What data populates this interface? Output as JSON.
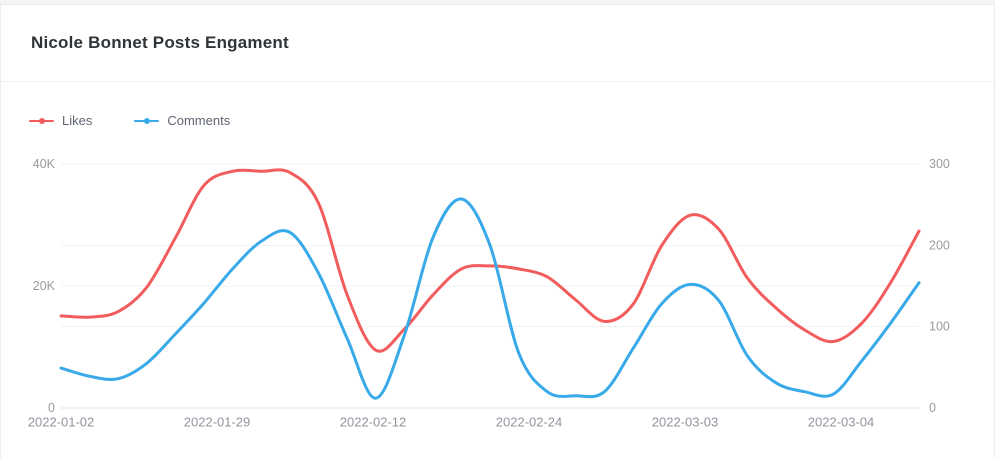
{
  "header": {
    "title": "Nicole Bonnet Posts Engament"
  },
  "chart_data": {
    "type": "line",
    "title": "Nicole Bonnet Posts Engament",
    "smooth": true,
    "grid": true,
    "legend_position": "top-left",
    "x_tick_labels": [
      "2022-01-02",
      "2022-01-29",
      "2022-02-12",
      "2022-02-24",
      "2022-03-03",
      "2022-03-04"
    ],
    "left_axis": {
      "title": "Likes",
      "min": 0,
      "max": 40000,
      "tick_values": [
        0,
        20000,
        40000
      ],
      "tick_labels": [
        "0",
        "20K",
        "40K"
      ]
    },
    "right_axis": {
      "title": "Comments",
      "min": 0,
      "max": 300,
      "tick_values": [
        0,
        100,
        200,
        300
      ],
      "tick_labels": [
        "0",
        "100",
        "200",
        "300"
      ]
    },
    "series": [
      {
        "name": "Likes",
        "axis": "left",
        "color": "#f25c5c",
        "values": [
          15100,
          14900,
          15800,
          19800,
          27900,
          36500,
          38800,
          38800,
          38600,
          33600,
          18600,
          9500,
          12900,
          18500,
          22800,
          23300,
          22800,
          21500,
          17700,
          14200,
          17000,
          26600,
          31600,
          29300,
          21300,
          16400,
          12800,
          10900,
          13900,
          20500,
          29000
        ]
      },
      {
        "name": "Comments",
        "axis": "right",
        "color": "#38a9e9",
        "values": [
          49,
          39,
          36,
          55,
          91,
          129,
          171,
          205,
          216,
          166,
          86,
          12,
          89,
          209,
          257,
          200,
          68,
          20,
          15,
          20,
          73,
          128,
          152,
          132,
          64,
          31,
          20,
          17,
          58,
          104,
          154
        ]
      }
    ]
  },
  "colors": {
    "likes": "#f25c5c",
    "comments": "#38a9e9",
    "gridline": "#f2f2f4",
    "axis_line": "#e2e2e6",
    "tick_text": "#9b9b9b",
    "date_text": "#8f959d"
  }
}
